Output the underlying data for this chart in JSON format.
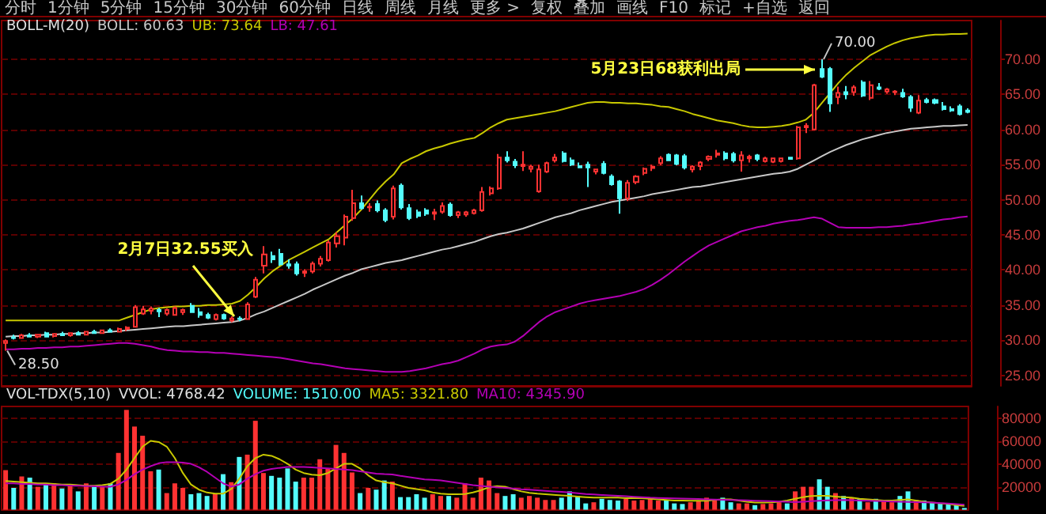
{
  "chart_data": [
    {
      "type": "candlestick",
      "title": "BOLL-M(20)",
      "categories": [
        null,
        null,
        null,
        null,
        null,
        null,
        null,
        null,
        null,
        null,
        null,
        null,
        null,
        null,
        null,
        null,
        null,
        null,
        null,
        null,
        null,
        null,
        null,
        null,
        null,
        null,
        null,
        null,
        null,
        null,
        null,
        null,
        null,
        null,
        null,
        null,
        null,
        null,
        null,
        null,
        null,
        null,
        null,
        null,
        null,
        null,
        null,
        null,
        null,
        null,
        null,
        null,
        null,
        null,
        null,
        null,
        null,
        null,
        null,
        null,
        null,
        null,
        null,
        null,
        null,
        null,
        null,
        null,
        null,
        null,
        null,
        null,
        null,
        null,
        null,
        null,
        null,
        null,
        null,
        null,
        null,
        null,
        null,
        null,
        null,
        null,
        null,
        null,
        null,
        null,
        null,
        null,
        null,
        null,
        null,
        null,
        null,
        null,
        null,
        null,
        null,
        null,
        null,
        null,
        null,
        null,
        null,
        null,
        null,
        null,
        null,
        null,
        null,
        null,
        null,
        null,
        null,
        null,
        null,
        null
      ],
      "ohlc": [
        [
          29.6,
          30.1,
          28.5,
          29.9
        ],
        [
          30.4,
          30.8,
          30.1,
          30.3
        ],
        [
          30.3,
          30.9,
          30.2,
          30.7
        ],
        [
          30.7,
          31.0,
          30.4,
          30.5
        ],
        [
          30.5,
          30.9,
          30.3,
          30.8
        ],
        [
          31.0,
          31.2,
          30.5,
          30.5
        ],
        [
          30.6,
          31.0,
          30.4,
          30.9
        ],
        [
          30.9,
          31.2,
          30.6,
          30.7
        ],
        [
          30.7,
          31.1,
          30.5,
          31.0
        ],
        [
          31.0,
          31.3,
          30.7,
          30.8
        ],
        [
          30.8,
          31.3,
          30.7,
          31.2
        ],
        [
          31.2,
          31.5,
          30.9,
          31.0
        ],
        [
          31.0,
          31.5,
          30.9,
          31.4
        ],
        [
          31.4,
          31.7,
          31.1,
          31.2
        ],
        [
          31.2,
          31.8,
          31.1,
          31.6
        ],
        [
          31.6,
          32.0,
          31.3,
          31.8
        ],
        [
          31.9,
          35.0,
          31.8,
          34.7
        ],
        [
          33.8,
          34.9,
          33.6,
          34.4
        ],
        [
          34.2,
          34.8,
          33.7,
          34.5
        ],
        [
          34.3,
          34.6,
          33.3,
          34.1
        ],
        [
          33.8,
          34.5,
          33.5,
          34.3
        ],
        [
          33.6,
          34.8,
          33.5,
          34.6
        ],
        [
          34.0,
          34.5,
          33.6,
          34.3
        ],
        [
          34.9,
          35.3,
          33.9,
          34.0
        ],
        [
          34.0,
          34.6,
          33.2,
          33.6
        ],
        [
          33.6,
          33.9,
          33.0,
          33.2
        ],
        [
          33.0,
          33.8,
          32.8,
          33.6
        ],
        [
          33.6,
          33.8,
          32.9,
          33.1
        ],
        [
          32.8,
          33.4,
          32.55,
          33.1
        ],
        [
          33.1,
          33.4,
          32.7,
          33.0
        ],
        [
          33.0,
          35.4,
          32.9,
          35.1
        ],
        [
          36.2,
          39.0,
          36.0,
          38.6
        ],
        [
          40.6,
          43.4,
          39.5,
          42.2
        ],
        [
          42.0,
          42.6,
          41.0,
          41.5
        ],
        [
          42.3,
          43.0,
          40.6,
          40.8
        ],
        [
          40.8,
          41.5,
          40.2,
          40.6
        ],
        [
          40.8,
          41.2,
          39.2,
          39.5
        ],
        [
          39.6,
          40.1,
          39.0,
          39.8
        ],
        [
          39.8,
          41.2,
          39.5,
          40.9
        ],
        [
          40.9,
          42.0,
          40.5,
          41.6
        ],
        [
          41.4,
          44.2,
          41.2,
          43.9
        ],
        [
          43.8,
          45.4,
          43.2,
          44.8
        ],
        [
          44.6,
          47.9,
          43.5,
          47.6
        ],
        [
          47.4,
          51.4,
          47.0,
          49.5
        ],
        [
          49.5,
          50.6,
          48.6,
          48.8
        ],
        [
          48.9,
          49.5,
          48.3,
          49.0
        ],
        [
          49.4,
          49.9,
          48.2,
          48.5
        ],
        [
          48.5,
          48.8,
          46.8,
          47.1
        ],
        [
          47.6,
          52.0,
          47.2,
          51.6
        ],
        [
          52.0,
          52.3,
          48.6,
          48.9
        ],
        [
          48.8,
          49.4,
          47.1,
          47.4
        ],
        [
          48.2,
          48.6,
          47.4,
          47.7
        ],
        [
          48.5,
          48.8,
          47.7,
          48.0
        ],
        [
          48.0,
          48.7,
          47.1,
          48.2
        ],
        [
          48.3,
          49.6,
          48.0,
          49.1
        ],
        [
          49.3,
          49.6,
          47.6,
          47.8
        ],
        [
          47.8,
          48.4,
          47.4,
          48.2
        ],
        [
          47.9,
          48.4,
          47.6,
          48.2
        ],
        [
          48.1,
          48.7,
          47.9,
          48.5
        ],
        [
          48.5,
          51.8,
          48.3,
          51.1
        ],
        [
          50.9,
          51.9,
          50.6,
          51.6
        ],
        [
          51.6,
          56.5,
          51.4,
          56.0
        ],
        [
          56.0,
          56.9,
          55.3,
          55.6
        ],
        [
          55.4,
          55.8,
          54.5,
          54.9
        ],
        [
          54.8,
          56.9,
          54.1,
          55.0
        ],
        [
          54.4,
          55.0,
          53.9,
          54.7
        ],
        [
          51.2,
          55.0,
          51.0,
          54.3
        ],
        [
          54.0,
          55.4,
          53.8,
          55.2
        ],
        [
          55.6,
          56.5,
          55.3,
          56.0
        ],
        [
          56.6,
          56.9,
          55.3,
          55.5
        ],
        [
          55.6,
          56.0,
          54.8,
          55.0
        ],
        [
          54.8,
          55.3,
          54.5,
          54.6
        ],
        [
          55.0,
          55.4,
          51.8,
          54.6
        ],
        [
          54.0,
          54.4,
          53.6,
          54.3
        ],
        [
          55.1,
          55.5,
          53.6,
          53.8
        ],
        [
          53.3,
          53.6,
          52.0,
          52.2
        ],
        [
          52.6,
          52.8,
          48.0,
          50.2
        ],
        [
          50.2,
          52.8,
          49.8,
          52.4
        ],
        [
          52.5,
          53.5,
          52.2,
          53.3
        ],
        [
          53.8,
          54.6,
          53.5,
          54.4
        ],
        [
          54.5,
          55.0,
          54.1,
          54.7
        ],
        [
          55.2,
          56.2,
          54.9,
          55.9
        ],
        [
          56.4,
          56.6,
          55.5,
          55.6
        ],
        [
          56.3,
          56.5,
          54.9,
          55.1
        ],
        [
          56.2,
          56.5,
          54.3,
          54.6
        ],
        [
          54.3,
          54.9,
          53.9,
          54.7
        ],
        [
          54.8,
          55.5,
          54.2,
          55.3
        ],
        [
          55.8,
          56.3,
          55.5,
          56.1
        ],
        [
          56.4,
          57.1,
          56.0,
          56.6
        ],
        [
          56.6,
          56.9,
          55.6,
          55.9
        ],
        [
          56.5,
          56.8,
          55.3,
          55.6
        ],
        [
          55.6,
          56.9,
          54.0,
          56.3
        ],
        [
          55.9,
          56.4,
          55.3,
          56.1
        ],
        [
          56.3,
          56.5,
          55.5,
          55.8
        ],
        [
          55.5,
          56.1,
          55.3,
          55.9
        ],
        [
          55.4,
          56.0,
          55.2,
          55.9
        ],
        [
          55.5,
          56.0,
          55.3,
          55.9
        ],
        [
          56.0,
          56.1,
          55.7,
          55.8
        ],
        [
          55.9,
          60.5,
          55.7,
          60.3
        ],
        [
          60.3,
          60.9,
          59.5,
          60.5
        ],
        [
          60.0,
          66.5,
          59.9,
          66.3
        ],
        [
          68.6,
          70.0,
          67.3,
          67.5
        ],
        [
          68.6,
          68.9,
          62.5,
          63.7
        ],
        [
          64.6,
          66.1,
          63.6,
          65.2
        ],
        [
          65.3,
          66.2,
          64.3,
          65.0
        ],
        [
          65.3,
          66.3,
          64.8,
          66.0
        ],
        [
          66.7,
          67.0,
          64.6,
          64.8
        ],
        [
          64.5,
          66.9,
          64.2,
          66.3
        ],
        [
          66.0,
          66.6,
          65.6,
          65.8
        ],
        [
          65.4,
          65.9,
          65.1,
          65.7
        ],
        [
          65.3,
          65.6,
          64.9,
          65.4
        ],
        [
          65.2,
          65.8,
          64.5,
          64.7
        ],
        [
          64.6,
          64.9,
          62.5,
          63.1
        ],
        [
          62.4,
          64.9,
          62.2,
          64.1
        ],
        [
          64.2,
          64.5,
          63.7,
          63.9
        ],
        [
          64.2,
          64.4,
          63.6,
          63.8
        ],
        [
          63.3,
          63.9,
          62.7,
          62.9
        ],
        [
          62.9,
          63.3,
          62.5,
          62.7
        ],
        [
          63.3,
          63.6,
          62.0,
          62.2
        ],
        [
          62.7,
          63.0,
          62.3,
          62.5
        ]
      ],
      "series": [
        {
          "name": "BOLL: 60.63",
          "type": "line",
          "color": "#c8c8c8",
          "values": [
            30.5,
            30.6,
            30.6,
            30.7,
            30.7,
            30.8,
            30.8,
            30.9,
            30.9,
            31.0,
            31.0,
            31.1,
            31.1,
            31.2,
            31.3,
            31.4,
            31.5,
            31.6,
            31.7,
            31.8,
            31.9,
            32.0,
            32.0,
            32.1,
            32.2,
            32.3,
            32.4,
            32.5,
            32.6,
            32.8,
            33.2,
            33.7,
            34.1,
            34.6,
            35.1,
            35.6,
            36.1,
            36.6,
            37.2,
            37.7,
            38.2,
            38.7,
            39.2,
            39.6,
            40.1,
            40.4,
            40.7,
            41.0,
            41.2,
            41.4,
            41.7,
            42.0,
            42.3,
            42.6,
            42.9,
            43.1,
            43.4,
            43.7,
            44.0,
            44.4,
            44.8,
            45.1,
            45.3,
            45.6,
            45.9,
            46.3,
            46.7,
            47.1,
            47.5,
            47.8,
            48.1,
            48.5,
            48.8,
            49.1,
            49.4,
            49.7,
            49.9,
            50.1,
            50.3,
            50.5,
            50.8,
            51.0,
            51.2,
            51.4,
            51.6,
            51.8,
            51.9,
            52.1,
            52.3,
            52.5,
            52.7,
            52.9,
            53.1,
            53.3,
            53.5,
            53.7,
            53.8,
            54.0,
            54.4,
            55.0,
            55.6,
            56.2,
            56.8,
            57.3,
            57.8,
            58.2,
            58.6,
            58.9,
            59.2,
            59.5,
            59.7,
            59.9,
            60.1,
            60.2,
            60.3,
            60.4,
            60.5,
            60.5,
            60.6,
            60.63
          ]
        },
        {
          "name": "UB: 73.64",
          "type": "line",
          "color": "#c8c800",
          "values": [
            32.8,
            32.8,
            32.8,
            32.8,
            32.8,
            32.8,
            32.8,
            32.8,
            32.8,
            32.8,
            32.8,
            32.8,
            32.8,
            32.8,
            32.8,
            33.2,
            33.6,
            34.0,
            34.4,
            34.6,
            34.7,
            34.8,
            34.8,
            34.9,
            34.9,
            35.0,
            35.0,
            35.1,
            35.2,
            35.6,
            36.5,
            37.6,
            38.8,
            39.8,
            40.6,
            41.4,
            42.0,
            42.6,
            43.2,
            43.8,
            44.4,
            45.4,
            46.4,
            47.4,
            48.6,
            50.0,
            51.4,
            52.6,
            53.6,
            55.2,
            55.8,
            56.3,
            56.9,
            57.3,
            57.6,
            58.0,
            58.3,
            58.6,
            58.8,
            59.5,
            60.3,
            60.9,
            61.4,
            61.6,
            61.8,
            62.0,
            62.2,
            62.4,
            62.6,
            62.9,
            63.2,
            63.5,
            63.8,
            63.9,
            63.9,
            63.8,
            63.8,
            63.7,
            63.7,
            63.6,
            63.5,
            63.3,
            63.2,
            62.9,
            62.6,
            62.2,
            61.9,
            61.6,
            61.3,
            61.1,
            60.9,
            60.6,
            60.4,
            60.3,
            60.3,
            60.4,
            60.5,
            60.7,
            61.0,
            61.4,
            62.4,
            63.8,
            65.2,
            66.6,
            67.8,
            68.8,
            69.7,
            70.6,
            71.2,
            71.8,
            72.3,
            72.7,
            73.0,
            73.2,
            73.4,
            73.5,
            73.5,
            73.6,
            73.6,
            73.64
          ]
        },
        {
          "name": "LB: 47.61",
          "type": "line",
          "color": "#b400b4",
          "values": [
            28.7,
            28.7,
            28.8,
            28.8,
            28.9,
            28.9,
            29.0,
            29.0,
            29.1,
            29.1,
            29.2,
            29.3,
            29.4,
            29.5,
            29.6,
            29.6,
            29.5,
            29.3,
            29.1,
            28.8,
            28.6,
            28.5,
            28.4,
            28.4,
            28.3,
            28.3,
            28.2,
            28.2,
            28.1,
            28.0,
            27.9,
            27.8,
            27.7,
            27.6,
            27.5,
            27.3,
            27.1,
            26.9,
            26.7,
            26.6,
            26.4,
            26.2,
            26.0,
            25.9,
            25.8,
            25.7,
            25.6,
            25.5,
            25.5,
            25.5,
            25.6,
            25.8,
            26.0,
            26.3,
            26.6,
            26.8,
            27.1,
            27.6,
            28.1,
            28.7,
            29.1,
            29.3,
            29.4,
            29.8,
            30.6,
            31.6,
            32.6,
            33.4,
            34.0,
            34.4,
            34.8,
            35.2,
            35.5,
            35.7,
            35.9,
            36.1,
            36.3,
            36.6,
            36.9,
            37.3,
            37.9,
            38.6,
            39.4,
            40.3,
            41.2,
            42.0,
            42.8,
            43.5,
            44.0,
            44.5,
            45.0,
            45.5,
            45.8,
            46.1,
            46.3,
            46.6,
            46.8,
            47.0,
            47.1,
            47.3,
            47.5,
            47.3,
            46.7,
            46.1,
            46.0,
            46.0,
            46.0,
            46.0,
            46.1,
            46.1,
            46.2,
            46.3,
            46.5,
            46.6,
            46.8,
            47.0,
            47.2,
            47.3,
            47.5,
            47.61
          ]
        }
      ],
      "ylim": [
        23.5,
        75.5
      ],
      "yticks": [
        {
          "value": 25,
          "label": "25.00"
        },
        {
          "value": 30,
          "label": "30.00"
        },
        {
          "value": 35,
          "label": "35.00"
        },
        {
          "value": 40,
          "label": "40.00"
        },
        {
          "value": 45,
          "label": "45.00"
        },
        {
          "value": 50,
          "label": "50.00"
        },
        {
          "value": 55,
          "label": "55.00"
        },
        {
          "value": 60,
          "label": "60.00"
        },
        {
          "value": 65,
          "label": "65.00"
        },
        {
          "value": 70,
          "label": "70.00"
        }
      ],
      "grid": "y",
      "legend": "top left",
      "tick_labels": "y",
      "annotations": [
        "2月7日32.55买入",
        "5月23日68获利出局",
        "分时",
        "1分钟",
        "5分钟",
        "15分钟",
        "30分钟",
        "60分钟",
        "日线",
        "周线",
        "月线",
        "更多 >",
        "复权",
        "叠加",
        "画线",
        "F10",
        "标记",
        "+自选",
        "返回",
        {
          "text": "70.00",
          "y": 70
        },
        {
          "text": "28.50",
          "y": 28.5
        }
      ]
    },
    {
      "type": "bar",
      "title": "VOL-TDX(5,10)",
      "categories": [
        null,
        null,
        null,
        null,
        null,
        null,
        null,
        null,
        null,
        null,
        null,
        null,
        null,
        null,
        null,
        null,
        null,
        null,
        null,
        null,
        null,
        null,
        null,
        null,
        null,
        null,
        null,
        null,
        null,
        null,
        null,
        null,
        null,
        null,
        null,
        null,
        null,
        null,
        null,
        null,
        null,
        null,
        null,
        null,
        null,
        null,
        null,
        null,
        null,
        null,
        null,
        null,
        null,
        null,
        null,
        null,
        null,
        null,
        null,
        null,
        null,
        null,
        null,
        null,
        null,
        null,
        null,
        null,
        null,
        null,
        null,
        null,
        null,
        null,
        null,
        null,
        null,
        null,
        null,
        null,
        null,
        null,
        null,
        null,
        null,
        null,
        null,
        null,
        null,
        null,
        null,
        null,
        null,
        null,
        null,
        null,
        null,
        null,
        null,
        null,
        null,
        null,
        null,
        null,
        null,
        null,
        null,
        null,
        null,
        null,
        null,
        null,
        null,
        null,
        null,
        null,
        null,
        null,
        null,
        null
      ],
      "series": [
        {
          "name": "VOLUME: 1510.00",
          "values": [
            34500,
            19000,
            29000,
            28000,
            20000,
            23000,
            23000,
            18500,
            21000,
            16000,
            23000,
            20000,
            20000,
            23000,
            49500,
            87000,
            72500,
            64500,
            33500,
            35000,
            14500,
            23000,
            19000,
            13500,
            14500,
            12000,
            13500,
            31000,
            24000,
            46000,
            48000,
            77500,
            32000,
            29500,
            28000,
            36000,
            24500,
            28000,
            28000,
            44000,
            36000,
            56500,
            49500,
            32500,
            14500,
            19000,
            17500,
            25500,
            24500,
            11000,
            11000,
            13500,
            10500,
            13500,
            12000,
            12000,
            10500,
            23000,
            10500,
            28000,
            25500,
            14500,
            12000,
            13500,
            10500,
            12000,
            10500,
            8500,
            8500,
            10500,
            16000,
            12000,
            5500,
            6500,
            9500,
            8500,
            8000,
            9500,
            8000,
            8500,
            9500,
            8000,
            8500,
            5500,
            5000,
            6500,
            8000,
            10500,
            8000,
            10500,
            6500,
            5500,
            5500,
            4000,
            5000,
            5500,
            6500,
            5500,
            16000,
            20000,
            20000,
            26500,
            20000,
            14500,
            12000,
            10500,
            9500,
            6500,
            9500,
            8500,
            6500,
            12000,
            16000,
            8500,
            8000,
            6500,
            5500,
            5500,
            5000,
            1510
          ],
          "colors": [
            "#ff3232",
            "#54fcfc",
            "#ff3232",
            "#54fcfc",
            "#ff3232",
            "#54fcfc",
            "#ff3232",
            "#54fcfc",
            "#ff3232",
            "#54fcfc",
            "#ff3232",
            "#54fcfc",
            "#ff3232",
            "#54fcfc",
            "#ff3232",
            "#ff3232",
            "#ff3232",
            "#ff3232",
            "#ff3232",
            "#54fcfc",
            "#ff3232",
            "#ff3232",
            "#ff3232",
            "#54fcfc",
            "#54fcfc",
            "#54fcfc",
            "#ff3232",
            "#54fcfc",
            "#ff3232",
            "#54fcfc",
            "#ff3232",
            "#ff3232",
            "#ff3232",
            "#54fcfc",
            "#54fcfc",
            "#54fcfc",
            "#54fcfc",
            "#ff3232",
            "#ff3232",
            "#ff3232",
            "#ff3232",
            "#ff3232",
            "#ff3232",
            "#ff3232",
            "#54fcfc",
            "#ff3232",
            "#54fcfc",
            "#54fcfc",
            "#ff3232",
            "#54fcfc",
            "#54fcfc",
            "#54fcfc",
            "#54fcfc",
            "#ff3232",
            "#ff3232",
            "#54fcfc",
            "#ff3232",
            "#ff3232",
            "#ff3232",
            "#ff3232",
            "#ff3232",
            "#ff3232",
            "#54fcfc",
            "#54fcfc",
            "#ff3232",
            "#ff3232",
            "#ff3232",
            "#ff3232",
            "#ff3232",
            "#54fcfc",
            "#54fcfc",
            "#54fcfc",
            "#54fcfc",
            "#ff3232",
            "#54fcfc",
            "#54fcfc",
            "#54fcfc",
            "#ff3232",
            "#ff3232",
            "#ff3232",
            "#ff3232",
            "#ff3232",
            "#54fcfc",
            "#54fcfc",
            "#54fcfc",
            "#ff3232",
            "#ff3232",
            "#ff3232",
            "#ff3232",
            "#54fcfc",
            "#54fcfc",
            "#ff3232",
            "#ff3232",
            "#54fcfc",
            "#ff3232",
            "#ff3232",
            "#ff3232",
            "#54fcfc",
            "#ff3232",
            "#ff3232",
            "#ff3232",
            "#54fcfc",
            "#54fcfc",
            "#ff3232",
            "#54fcfc",
            "#ff3232",
            "#54fcfc",
            "#ff3232",
            "#54fcfc",
            "#ff3232",
            "#ff3232",
            "#54fcfc",
            "#54fcfc",
            "#ff3232",
            "#54fcfc",
            "#54fcfc",
            "#54fcfc",
            "#54fcfc",
            "#54fcfc",
            "#54fcfc"
          ]
        },
        {
          "name": "MA5: 3321.80",
          "type": "line",
          "color": "#c8c800",
          "values": [
            25000,
            24500,
            24000,
            23500,
            23000,
            23000,
            22500,
            22000,
            22000,
            21500,
            21000,
            21000,
            21500,
            22500,
            27000,
            35000,
            45000,
            55000,
            60000,
            59000,
            55000,
            45000,
            32000,
            22000,
            17500,
            15000,
            14000,
            14000,
            18000,
            27000,
            38000,
            45000,
            48000,
            47000,
            44000,
            40000,
            35000,
            32000,
            30500,
            30000,
            32000,
            36000,
            40000,
            40000,
            36000,
            30000,
            25500,
            24000,
            23000,
            21000,
            19000,
            18000,
            17000,
            15000,
            14000,
            13500,
            13500,
            13700,
            15000,
            17000,
            19500,
            20500,
            20000,
            18000,
            16000,
            14700,
            14000,
            13500,
            13000,
            12500,
            12100,
            11500,
            11000,
            10500,
            10500,
            10500,
            10500,
            10000,
            10000,
            10000,
            9500,
            9000,
            8500,
            8000,
            8000,
            7800,
            7800,
            7800,
            8500,
            9000,
            9000,
            8000,
            7000,
            6200,
            6200,
            6500,
            7000,
            8000,
            9500,
            11000,
            12000,
            12100,
            12100,
            11500,
            11000,
            10500,
            9500,
            9000,
            8500,
            8000,
            8000,
            8500,
            9000,
            8000,
            7000,
            6200,
            5500,
            5000,
            4000,
            3321.8
          ]
        },
        {
          "name": "MA10: 4345.90",
          "type": "line",
          "color": "#b400b4",
          "values": [
            23000,
            23000,
            22500,
            22500,
            22000,
            22000,
            21500,
            21500,
            21000,
            21000,
            20500,
            20500,
            20000,
            20100,
            22000,
            26000,
            31000,
            35000,
            38000,
            40500,
            41500,
            41500,
            41000,
            40000,
            37000,
            33000,
            28000,
            23000,
            20100,
            22000,
            27000,
            31000,
            34000,
            35500,
            36500,
            37200,
            37200,
            37200,
            37000,
            36500,
            36000,
            35500,
            35000,
            34600,
            33500,
            32500,
            31500,
            31000,
            30800,
            29500,
            28500,
            27500,
            26500,
            26000,
            25500,
            24500,
            23500,
            22500,
            21500,
            20800,
            20100,
            19500,
            19000,
            18500,
            17800,
            17400,
            17000,
            16500,
            16000,
            15500,
            15000,
            14300,
            13700,
            13300,
            12900,
            12500,
            12100,
            11700,
            11300,
            10900,
            10500,
            10300,
            10100,
            9900,
            9700,
            9500,
            9300,
            9100,
            8900,
            8700,
            8500,
            8300,
            8100,
            7900,
            7700,
            7400,
            7200,
            7000,
            6700,
            7000,
            7400,
            7800,
            8200,
            8400,
            8500,
            8300,
            8000,
            7800,
            7600,
            7400,
            7200,
            7000,
            6800,
            6600,
            6400,
            6200,
            5800,
            5400,
            4900,
            4345.9
          ]
        }
      ],
      "annotations": [
        "VVOL: 4768.42"
      ],
      "ylim": [
        0,
        90000
      ],
      "yticks": [
        20000,
        40000,
        60000,
        80000
      ],
      "grid": "y",
      "legend": "top left",
      "tick_labels": "y"
    }
  ]
}
